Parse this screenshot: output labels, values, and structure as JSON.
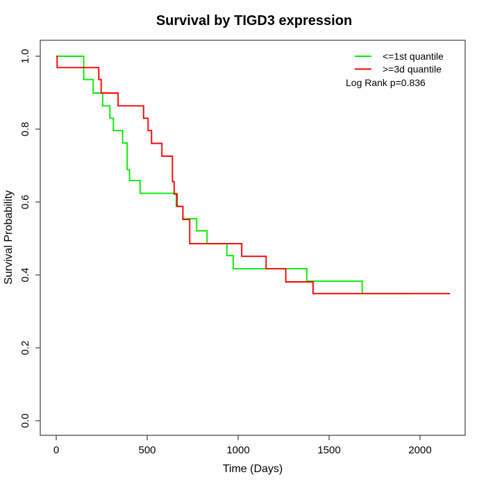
{
  "title": "Survival by TIGD3 expression",
  "xlabel": "Time (Days)",
  "ylabel": "Survival Probability",
  "legend": {
    "items": [
      {
        "label": "<=1st quantile",
        "color": "#00ee00"
      },
      {
        "label": ">=3d quantile",
        "color": "#ff0000"
      }
    ],
    "note": "Log Rank p=0.836"
  },
  "chart_data": {
    "type": "line",
    "subtype": "kaplan-meier-step",
    "title": "Survival by TIGD3 expression",
    "xlabel": "Time (Days)",
    "ylabel": "Survival Probability",
    "xlim": [
      0,
      2165
    ],
    "ylim": [
      0.0,
      1.0
    ],
    "xtick_values": [
      0,
      500,
      1000,
      1500,
      2000
    ],
    "xtick_labels": [
      "0",
      "500",
      "1000",
      "1500",
      "2000"
    ],
    "ytick_values": [
      0.0,
      0.2,
      0.4,
      0.6,
      0.8,
      1.0
    ],
    "ytick_labels": [
      "0.0",
      "0.2",
      "0.4",
      "0.6",
      "0.8",
      "1.0"
    ],
    "grid": false,
    "legend_position": "top-right",
    "annotation": "Log Rank p=0.836",
    "series": [
      {
        "name": "<=1st quantile",
        "color": "#00ee00",
        "points": [
          [
            0,
            1.0
          ],
          [
            151,
            0.936
          ],
          [
            203,
            0.899
          ],
          [
            255,
            0.864
          ],
          [
            295,
            0.83
          ],
          [
            314,
            0.796
          ],
          [
            365,
            0.762
          ],
          [
            390,
            0.689
          ],
          [
            403,
            0.659
          ],
          [
            461,
            0.624
          ],
          [
            660,
            0.588
          ],
          [
            696,
            0.554
          ],
          [
            772,
            0.521
          ],
          [
            829,
            0.486
          ],
          [
            938,
            0.453
          ],
          [
            973,
            0.417
          ],
          [
            1377,
            0.383
          ],
          [
            1682,
            0.349
          ],
          [
            1956,
            0.349
          ]
        ]
      },
      {
        "name": ">=3d quantile",
        "color": "#ff0000",
        "points": [
          [
            0,
            1.0
          ],
          [
            5,
            0.969
          ],
          [
            234,
            0.936
          ],
          [
            247,
            0.899
          ],
          [
            340,
            0.864
          ],
          [
            480,
            0.83
          ],
          [
            505,
            0.796
          ],
          [
            524,
            0.761
          ],
          [
            581,
            0.726
          ],
          [
            639,
            0.656
          ],
          [
            648,
            0.622
          ],
          [
            664,
            0.588
          ],
          [
            696,
            0.552
          ],
          [
            734,
            0.486
          ],
          [
            1020,
            0.451
          ],
          [
            1154,
            0.417
          ],
          [
            1262,
            0.381
          ],
          [
            1412,
            0.349
          ],
          [
            2165,
            0.349
          ]
        ]
      }
    ]
  }
}
